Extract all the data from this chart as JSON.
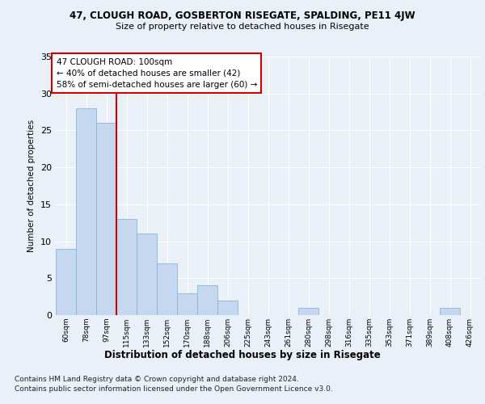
{
  "title_line1": "47, CLOUGH ROAD, GOSBERTON RISEGATE, SPALDING, PE11 4JW",
  "title_line2": "Size of property relative to detached houses in Risegate",
  "xlabel": "Distribution of detached houses by size in Risegate",
  "ylabel": "Number of detached properties",
  "categories": [
    "60sqm",
    "78sqm",
    "97sqm",
    "115sqm",
    "133sqm",
    "152sqm",
    "170sqm",
    "188sqm",
    "206sqm",
    "225sqm",
    "243sqm",
    "261sqm",
    "280sqm",
    "298sqm",
    "316sqm",
    "335sqm",
    "353sqm",
    "371sqm",
    "389sqm",
    "408sqm",
    "426sqm"
  ],
  "values": [
    9,
    28,
    26,
    13,
    11,
    7,
    3,
    4,
    2,
    0,
    0,
    0,
    1,
    0,
    0,
    0,
    0,
    0,
    0,
    1,
    0
  ],
  "bar_color": "#c5d8f0",
  "bar_edge_color": "#8ab4d8",
  "red_line_x": 2.5,
  "annotation_text": "47 CLOUGH ROAD: 100sqm\n← 40% of detached houses are smaller (42)\n58% of semi-detached houses are larger (60) →",
  "ylim": [
    0,
    35
  ],
  "yticks": [
    0,
    5,
    10,
    15,
    20,
    25,
    30,
    35
  ],
  "footer_line1": "Contains HM Land Registry data © Crown copyright and database right 2024.",
  "footer_line2": "Contains public sector information licensed under the Open Government Licence v3.0.",
  "background_color": "#eaf0f8",
  "grid_color": "#ffffff",
  "annotation_box_facecolor": "#ffffff",
  "annotation_box_edgecolor": "#cc0000",
  "red_line_color": "#cc0000"
}
